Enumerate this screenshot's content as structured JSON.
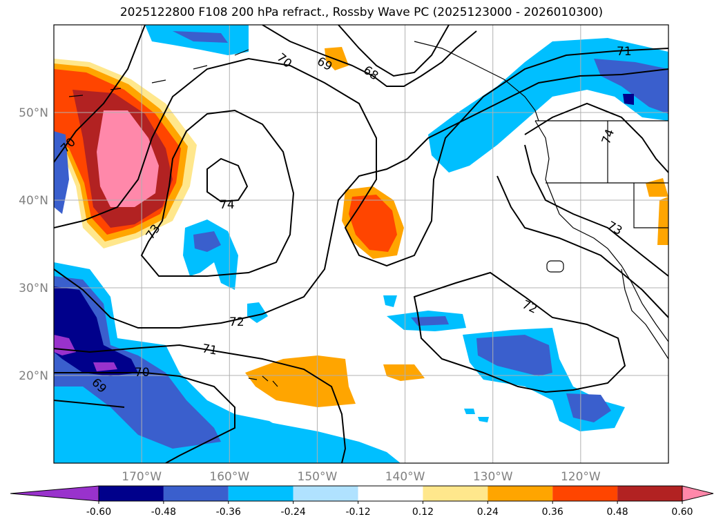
{
  "title": "2025122800 F108 200 hPa refract., Rossby Wave PC (2025123000 - 2026010300)",
  "map": {
    "projection": "equirectangular",
    "lon_range": [
      -180,
      -110
    ],
    "lat_range": [
      10,
      60
    ],
    "lat_ticks": [
      {
        "value": 50,
        "label": "50°N"
      },
      {
        "value": 40,
        "label": "40°N"
      },
      {
        "value": 30,
        "label": "30°N"
      },
      {
        "value": 20,
        "label": "20°N"
      }
    ],
    "lon_ticks": [
      {
        "value": -170,
        "label": "170°W"
      },
      {
        "value": -160,
        "label": "160°W"
      },
      {
        "value": -150,
        "label": "150°W"
      },
      {
        "value": -140,
        "label": "140°W"
      },
      {
        "value": -130,
        "label": "130°W"
      },
      {
        "value": -120,
        "label": "120°W"
      }
    ],
    "gridlines": true,
    "contour_labels": [
      "70",
      "69",
      "68",
      "71",
      "70",
      "74",
      "73",
      "72",
      "71",
      "70",
      "69",
      "74",
      "73",
      "72"
    ]
  },
  "colorbar": {
    "levels": [
      "-0.60",
      "-0.48",
      "-0.36",
      "-0.24",
      "-0.12",
      "0.12",
      "0.24",
      "0.36",
      "0.48",
      "0.60"
    ],
    "colors": [
      "#9932cc",
      "#00008b",
      "#3a5fcd",
      "#00bfff",
      "#b0e2ff",
      "#ffffff",
      "#ffe78c",
      "#ffa500",
      "#ff4500",
      "#b22222",
      "#ff88aa"
    ],
    "extend": "both"
  }
}
